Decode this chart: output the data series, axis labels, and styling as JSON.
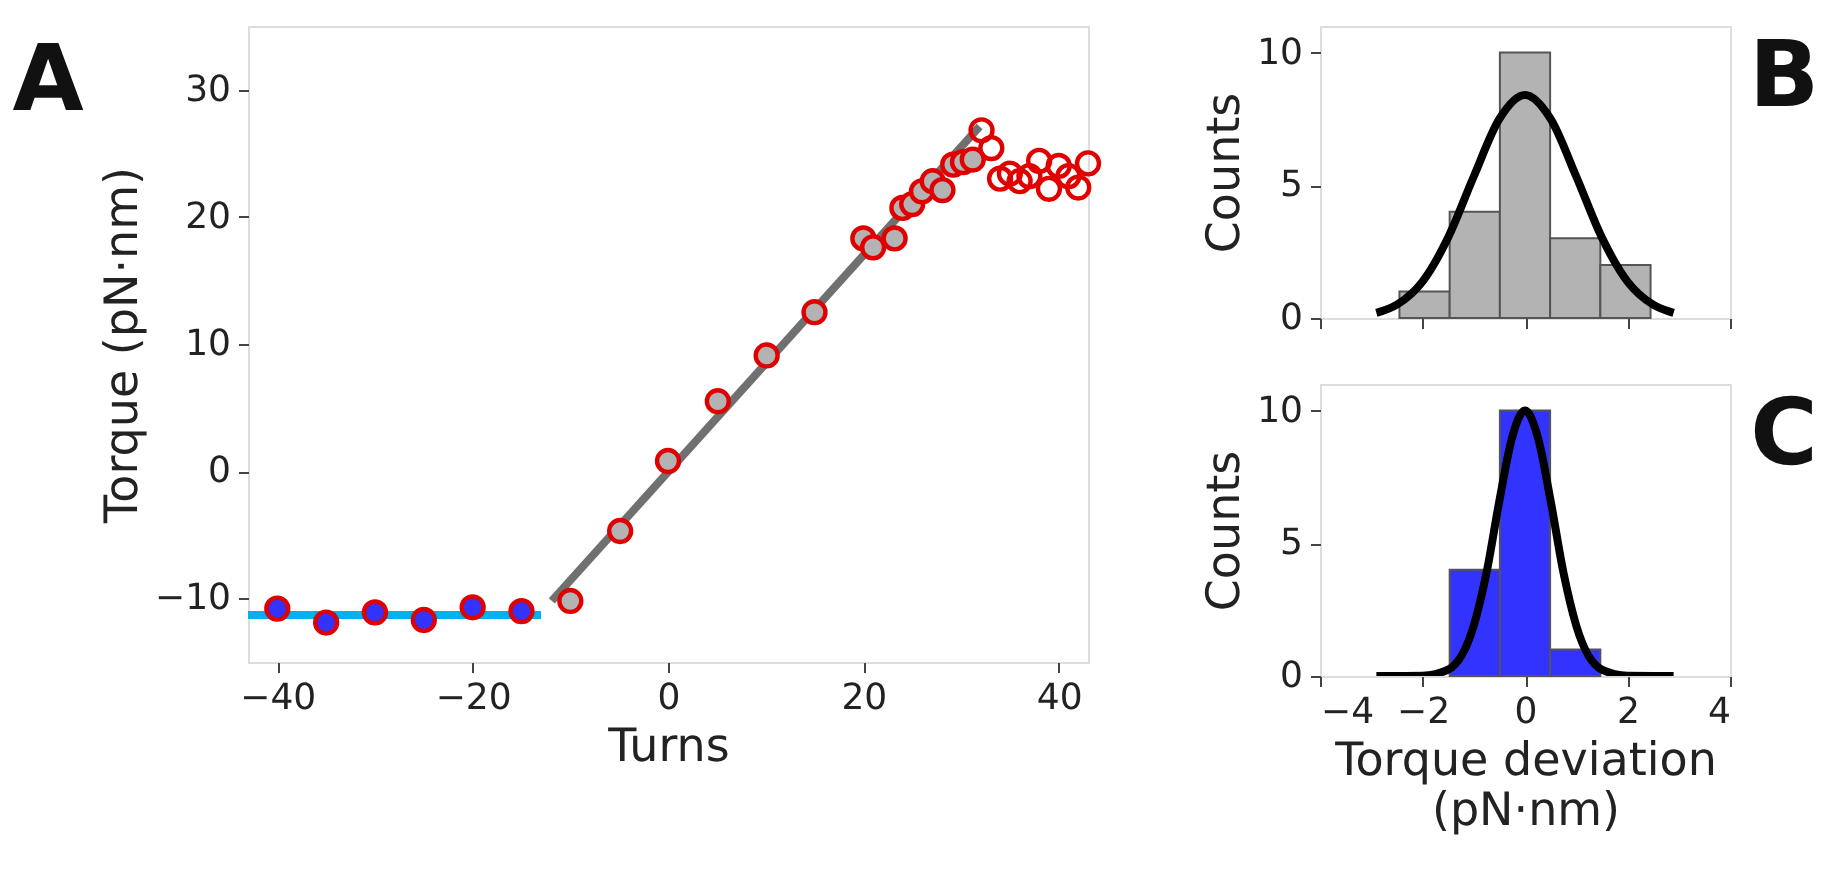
{
  "chart_data": [
    {
      "type": "scatter",
      "xlabel": "Turns",
      "ylabel": "Torque (pN·nm)",
      "annotations": [
        "A"
      ],
      "xlim": [
        -43,
        43
      ],
      "xticks": [
        -40,
        -20,
        0,
        20,
        40
      ],
      "ylim": [
        -15,
        35
      ],
      "yticks": [
        -10,
        0,
        10,
        20,
        30
      ],
      "grid": false,
      "legend": false,
      "series": [
        {
          "type": "line",
          "color": "#00b0f0",
          "x": [
            -43,
            -13
          ],
          "values": [
            -11.3,
            -11.3
          ]
        },
        {
          "type": "line",
          "color": "#707070",
          "x": [
            -11.9,
            31.9
          ],
          "values": [
            -10.2,
            27.1
          ]
        },
        {
          "type": "scatter",
          "marker": "circle",
          "color": "#3333ff",
          "x": [
            -40,
            -35,
            -30,
            -25,
            -20,
            -15
          ],
          "values": [
            -10.8,
            -11.9,
            -11.1,
            -11.7,
            -10.7,
            -11.0
          ]
        },
        {
          "type": "scatter",
          "marker": "circle",
          "color": "#b3b3b3",
          "x": [
            -10,
            -4.9,
            0,
            5.1,
            10.1,
            15,
            20,
            21,
            23.2,
            24,
            25,
            26,
            27.1,
            28.1,
            29.2,
            30.2,
            31.2
          ],
          "values": [
            -10.2,
            -4.7,
            0.8,
            5.5,
            9.1,
            12.5,
            18.3,
            17.6,
            18.3,
            20.7,
            21,
            22,
            22.8,
            22.1,
            24.1,
            24.3,
            24.5
          ]
        },
        {
          "type": "scatter",
          "marker": "circle",
          "x": [
            32.1,
            33.1,
            34,
            35,
            36,
            37,
            38,
            39,
            40,
            41,
            42,
            43
          ],
          "values": [
            26.8,
            25.4,
            23,
            23.4,
            22.8,
            23.2,
            24.4,
            22.2,
            24,
            23.2,
            22.3,
            24.2
          ]
        }
      ]
    },
    {
      "type": "histogram",
      "ylabel": "Counts",
      "annotations": [
        "B"
      ],
      "xlim": [
        -4,
        4
      ],
      "xticks": [
        -4,
        -2,
        0,
        2,
        4
      ],
      "ylim": [
        0,
        11
      ],
      "yticks": [
        0,
        5,
        10
      ],
      "tick_labels": "y",
      "grid": false,
      "legend": false,
      "bins": [
        -2.45,
        -1.47,
        -0.49,
        0.49,
        1.47,
        2.45
      ],
      "values": [
        1,
        4,
        10,
        3,
        2
      ],
      "color": "#b3b3b3",
      "series": [
        {
          "type": "line",
          "color": "#000000",
          "x": [
            -2.9,
            -2.5,
            -2,
            -1.5,
            -1,
            -0.5,
            0,
            0.5,
            1,
            1.5,
            2,
            2.5,
            2.9
          ],
          "values": [
            0.19,
            0.5,
            1.37,
            3.03,
            5.33,
            7.5,
            8.4,
            7.5,
            5.33,
            3.03,
            1.37,
            0.5,
            0.19
          ]
        }
      ]
    },
    {
      "type": "histogram",
      "xlabel": "Torque deviation\n(pN·nm)",
      "ylabel": "Counts",
      "annotations": [
        "C"
      ],
      "xlim": [
        -4,
        4
      ],
      "xticks": [
        -4,
        -2,
        0,
        2,
        4
      ],
      "ylim": [
        0,
        11
      ],
      "yticks": [
        0,
        5,
        10
      ],
      "grid": false,
      "legend": false,
      "bins": [
        -1.47,
        -0.49,
        0.49,
        1.47
      ],
      "values": [
        4,
        10,
        1
      ],
      "color": "#3333ff",
      "series": [
        {
          "type": "line",
          "color": "#000000",
          "x": [
            -2.9,
            -2,
            -1.5,
            -1,
            -0.75,
            -0.5,
            -0.25,
            0,
            0.25,
            0.5,
            0.75,
            1,
            1.5,
            2,
            2.9
          ],
          "values": [
            0,
            0.01,
            0.24,
            1.9,
            3.9,
            6.6,
            9.0,
            10,
            9.0,
            6.6,
            3.9,
            1.9,
            0.24,
            0.01,
            0
          ]
        }
      ]
    }
  ]
}
